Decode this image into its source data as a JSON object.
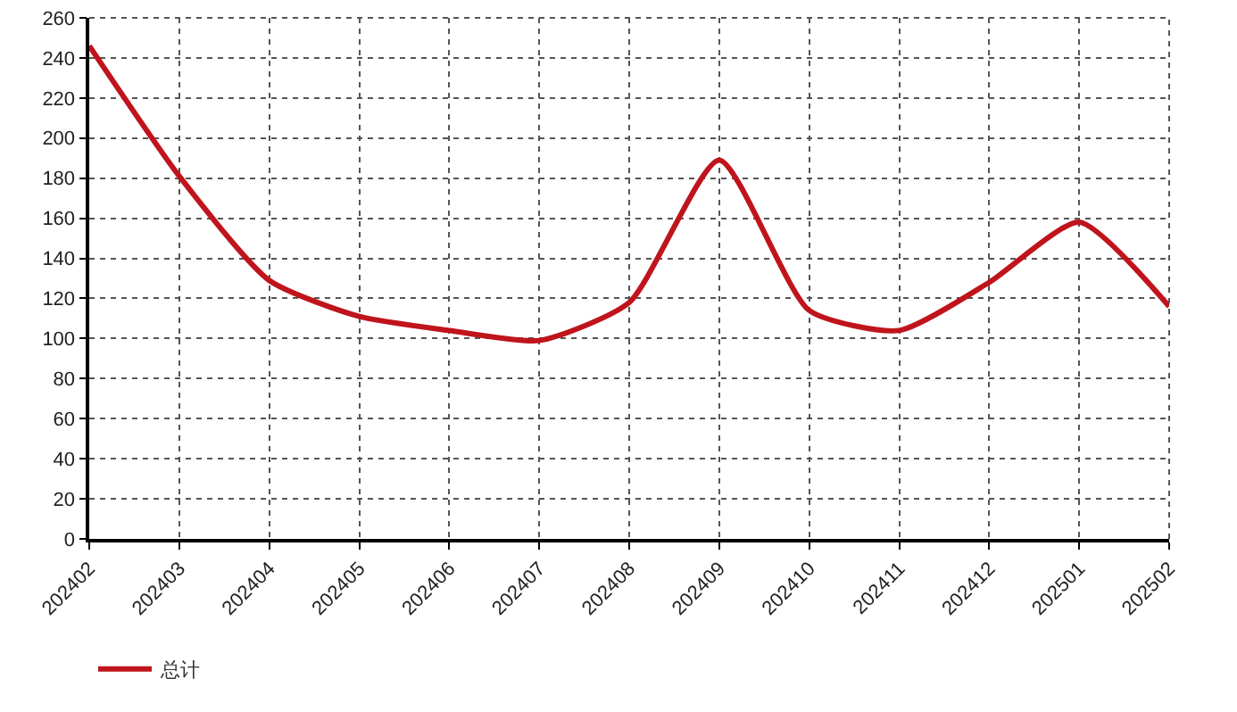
{
  "chart_data": {
    "type": "line",
    "categories": [
      "202402",
      "202403",
      "202404",
      "202405",
      "202406",
      "202407",
      "202408",
      "202409",
      "202410",
      "202411",
      "202412",
      "202501",
      "202502"
    ],
    "series": [
      {
        "name": "总计",
        "color": "#c0141c",
        "values": [
          246,
          181,
          129,
          111,
          104,
          99,
          118,
          189,
          114,
          104,
          128,
          158,
          116
        ]
      }
    ],
    "ylim": [
      0,
      260
    ],
    "yticks": [
      0,
      20,
      40,
      60,
      80,
      100,
      120,
      140,
      160,
      180,
      200,
      220,
      240,
      260
    ],
    "grid": true,
    "legend": "bottom left",
    "marker": "none",
    "line_style": "solid"
  }
}
